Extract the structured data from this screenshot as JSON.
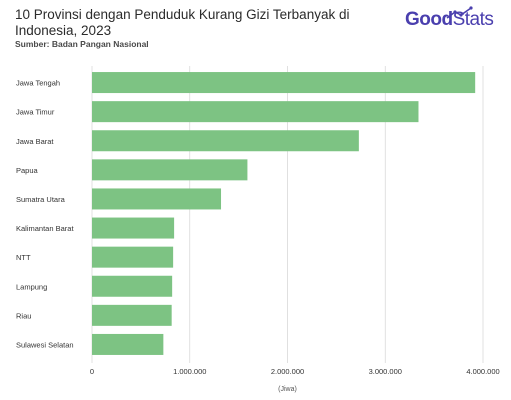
{
  "title": "10 Provinsi dengan Penduduk Kurang Gizi Terbanyak di Indonesia, 2023",
  "source": "Sumber: Badan Pangan Nasional",
  "logo": {
    "part1": "Good",
    "part2": "Stats"
  },
  "colors": {
    "bar": "#7dc383",
    "grid": "#d9d9d9",
    "logo": "#4a3fae"
  },
  "chart_data": {
    "type": "bar",
    "orientation": "horizontal",
    "categories": [
      "Jawa Tengah",
      "Jawa Timur",
      "Jawa Barat",
      "Papua",
      "Sumatra Utara",
      "Kalimantan Barat",
      "NTT",
      "Lampung",
      "Riau",
      "Sulawesi Selatan"
    ],
    "values": [
      3920000,
      3340000,
      2730000,
      1590000,
      1320000,
      840000,
      830000,
      820000,
      815000,
      730000
    ],
    "xlim": [
      0,
      4000000
    ],
    "xticks": [
      0,
      1000000,
      2000000,
      3000000,
      4000000
    ],
    "xtick_labels": [
      "0",
      "1.000.000",
      "2.000.000",
      "3.000.000",
      "4.000.000"
    ],
    "xlabel": "(Jiwa)",
    "ylabel": "",
    "grid": true,
    "legend": "none"
  }
}
